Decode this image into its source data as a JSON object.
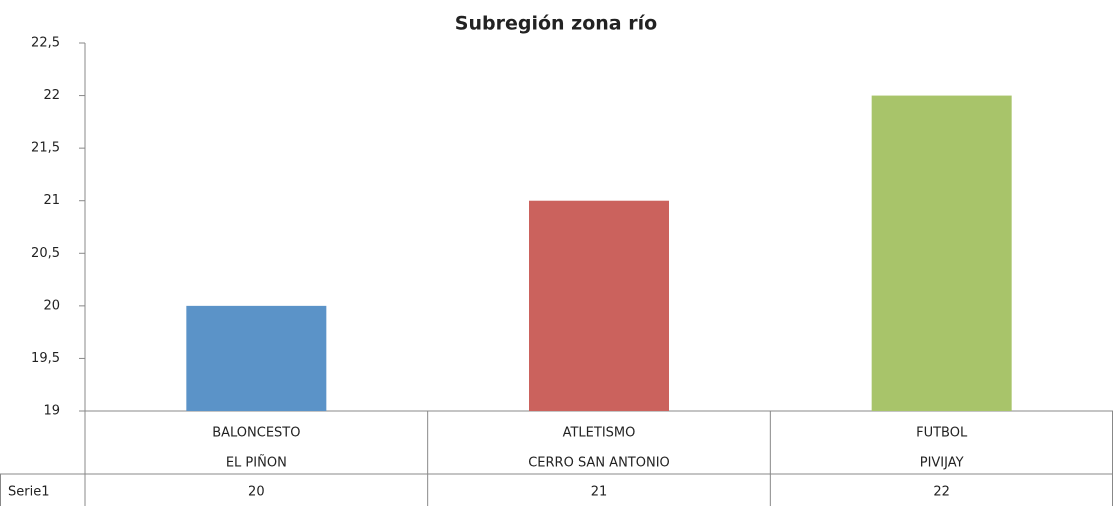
{
  "chart_data": {
    "type": "bar",
    "title": "Subregión zona río",
    "categories": [
      [
        "BALONCESTO",
        "EL PIÑON"
      ],
      [
        "ATLETISMO",
        "CERRO SAN ANTONIO"
      ],
      [
        "FUTBOL",
        "PIVIJAY"
      ]
    ],
    "series": [
      {
        "name": "Serie1",
        "values": [
          20,
          21,
          22
        ]
      }
    ],
    "colors": [
      "#5b93c8",
      "#cb625d",
      "#a8c46a"
    ],
    "ylim": [
      19,
      22.5
    ],
    "yticks": [
      19,
      {
        "value": 19.5,
        "label": "19,5"
      },
      20,
      {
        "value": 20.5,
        "label": "20,5"
      },
      21,
      {
        "value": 21.5,
        "label": "21,5"
      },
      22,
      {
        "value": 22.5,
        "label": "22,5"
      }
    ],
    "grid": false
  }
}
